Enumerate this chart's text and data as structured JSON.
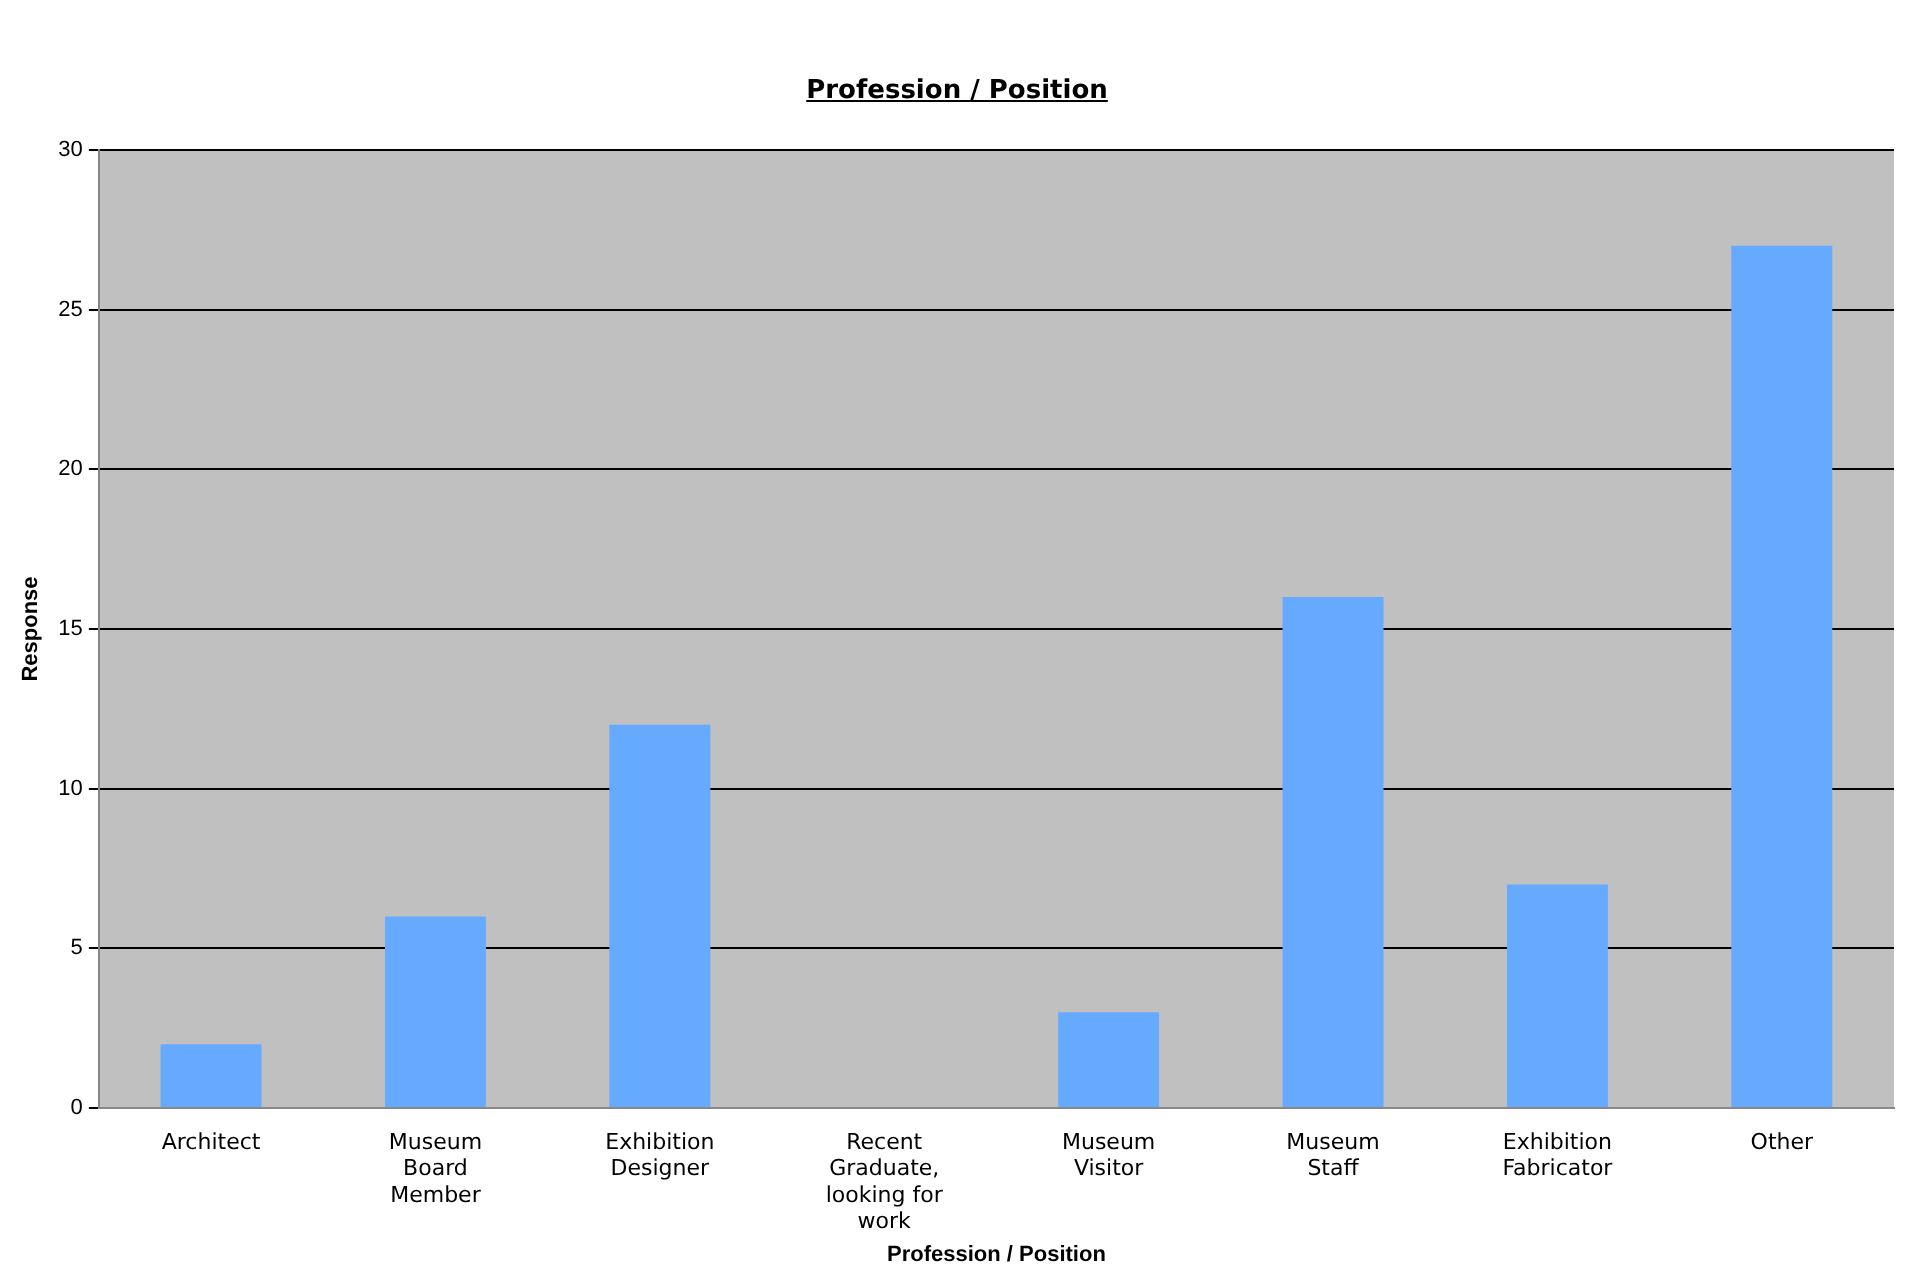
{
  "chart_data": {
    "type": "bar",
    "title": "Profession / Position",
    "xlabel": "Profession / Position",
    "ylabel": "Response",
    "categories": [
      "Architect",
      "Museum Board Member",
      "Exhibition Designer",
      "Recent Graduate, looking for work",
      "Museum Visitor",
      "Museum Staff",
      "Exhibition Fabricator",
      "Other"
    ],
    "values": [
      2,
      6,
      12,
      0,
      3,
      16,
      7,
      27
    ],
    "color": "#66aaff",
    "ylim": [
      0,
      30
    ],
    "yticks": [
      0,
      5,
      10,
      15,
      20,
      25,
      30
    ],
    "grid": "y",
    "legend": false
  }
}
